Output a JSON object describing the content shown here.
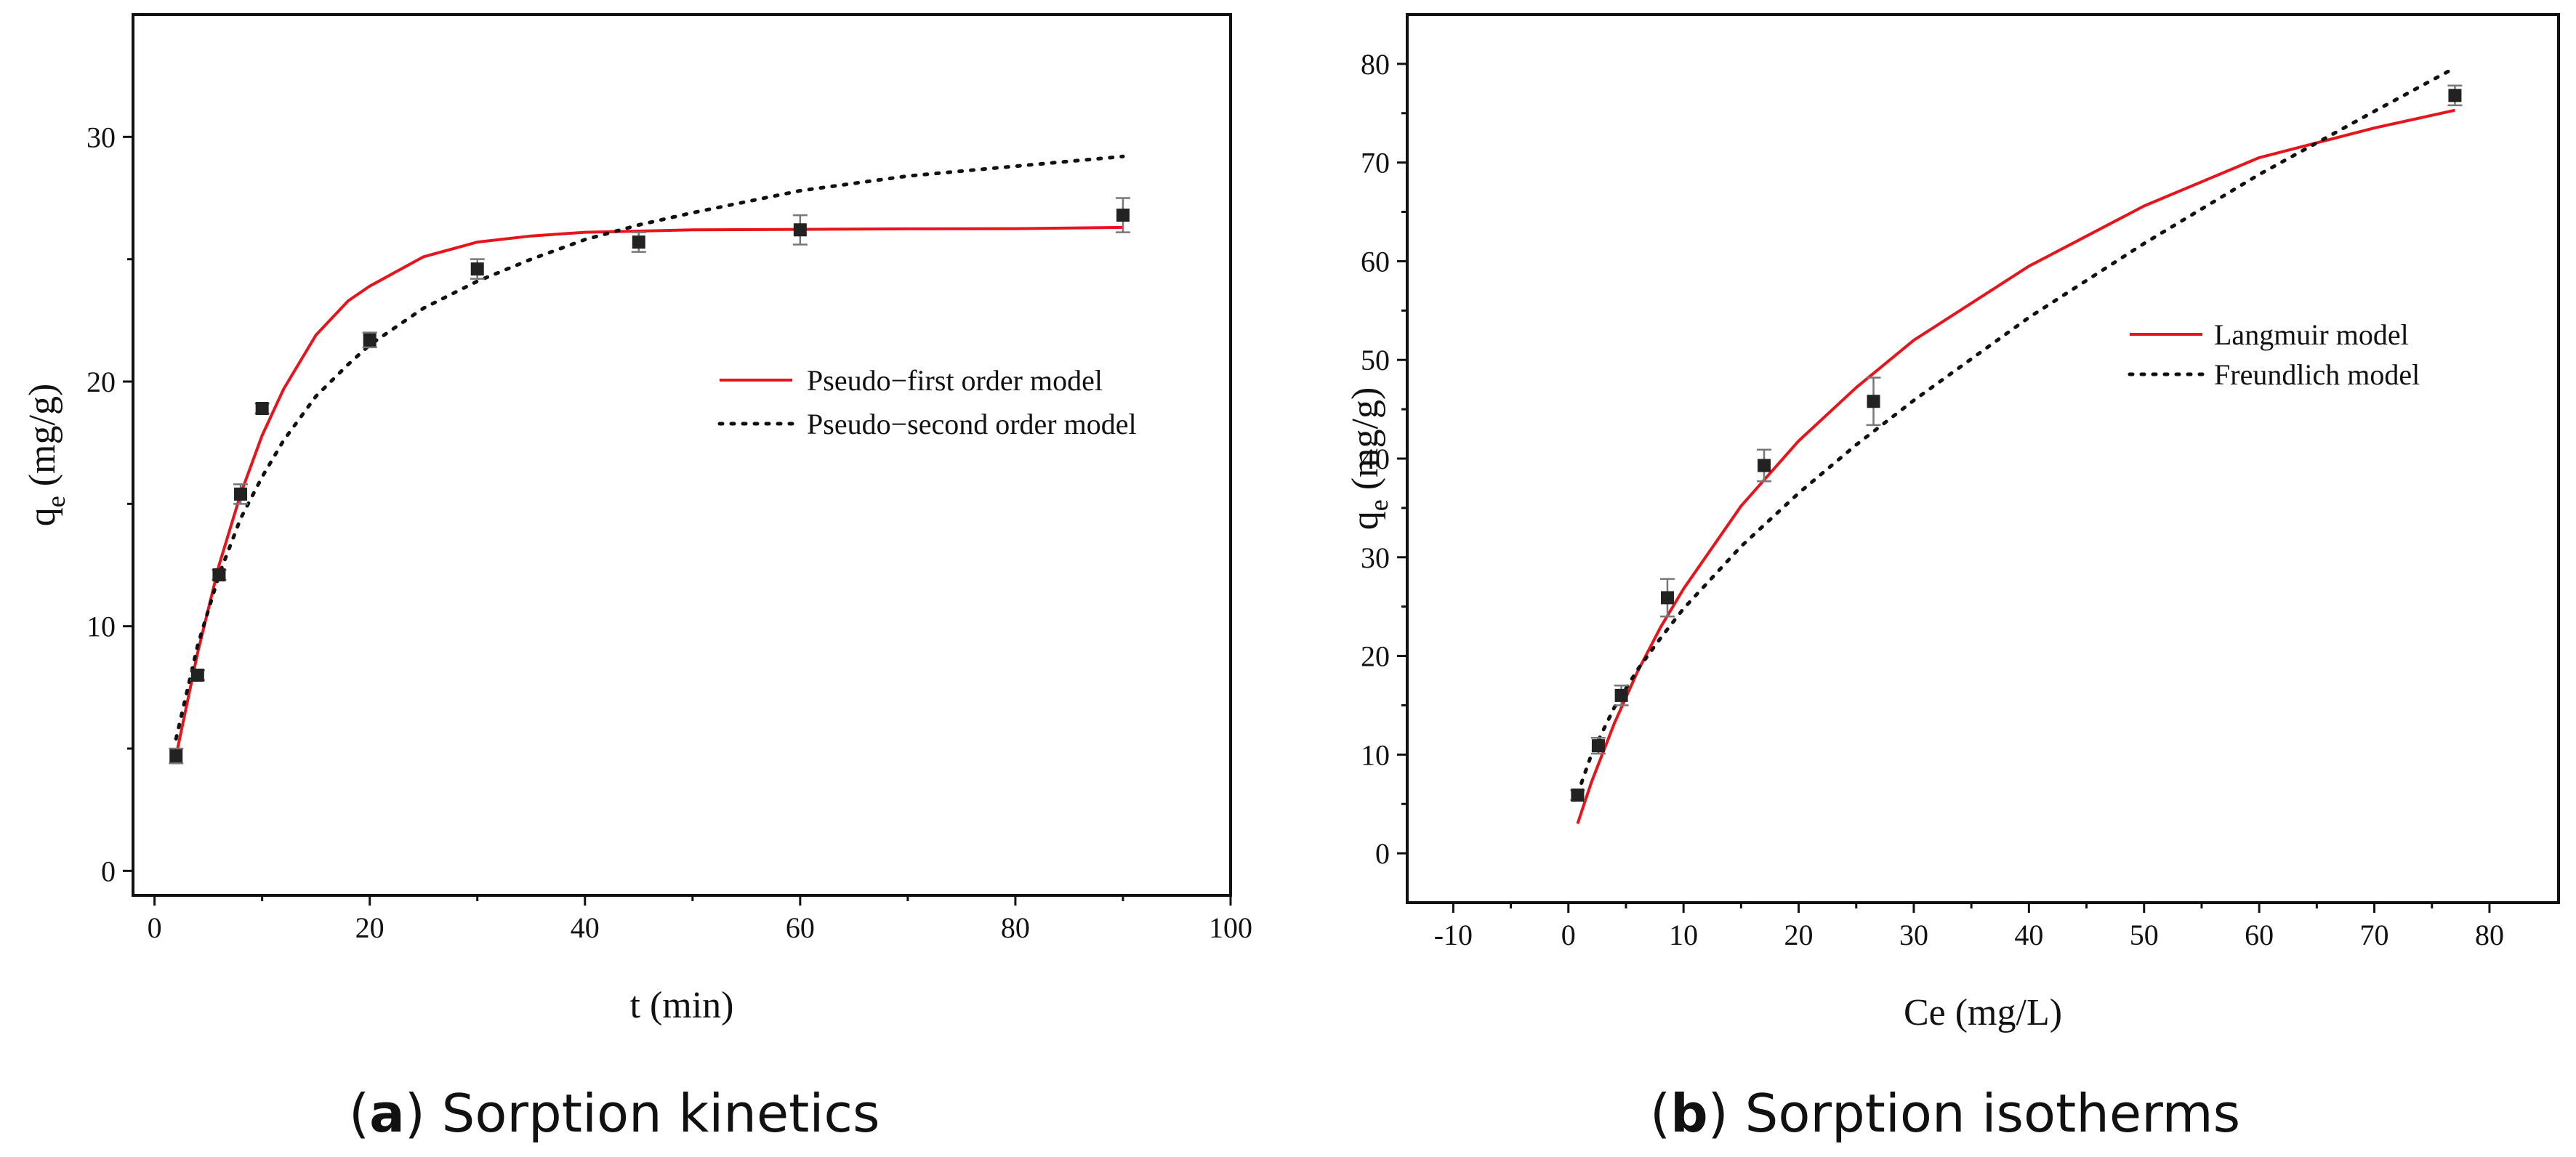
{
  "chart_data": [
    {
      "type": "scatter",
      "title": "",
      "xlabel": "t (min)",
      "ylabel_main": "q",
      "ylabel_sub": "e",
      "ylabel_unit": " (mg/g)",
      "xlim": [
        -2,
        100
      ],
      "ylim": [
        -1,
        35
      ],
      "xticks": [
        0,
        20,
        40,
        60,
        80,
        100
      ],
      "yticks": [
        0,
        10,
        20,
        30
      ],
      "xtick_labels": [
        "0",
        "20",
        "40",
        "60",
        "80",
        "100"
      ],
      "ytick_labels": [
        "0",
        "10",
        "20",
        "30"
      ],
      "grid": false,
      "legend_position": "middle-right",
      "points": [
        {
          "x": 2,
          "y": 4.7,
          "err": 0.3
        },
        {
          "x": 4,
          "y": 8.0,
          "err": 0.2
        },
        {
          "x": 6,
          "y": 12.1,
          "err": 0.2
        },
        {
          "x": 8,
          "y": 15.4,
          "err": 0.4
        },
        {
          "x": 10,
          "y": 18.9,
          "err": 0.2
        },
        {
          "x": 20,
          "y": 21.7,
          "err": 0.3
        },
        {
          "x": 30,
          "y": 24.6,
          "err": 0.4
        },
        {
          "x": 45,
          "y": 25.7,
          "err": 0.4
        },
        {
          "x": 60,
          "y": 26.2,
          "err": 0.6
        },
        {
          "x": 90,
          "y": 26.8,
          "err": 0.7
        }
      ],
      "series": [
        {
          "name": "Pseudo−first order model",
          "style": "solid",
          "color": "#e8141c",
          "x": [
            2,
            4,
            6,
            8,
            10,
            12,
            15,
            18,
            20,
            25,
            30,
            35,
            40,
            45,
            50,
            60,
            70,
            80,
            90
          ],
          "values": [
            4.7,
            8.9,
            12.5,
            15.4,
            17.8,
            19.7,
            21.9,
            23.3,
            23.9,
            25.1,
            25.7,
            25.95,
            26.1,
            26.15,
            26.2,
            26.22,
            26.24,
            26.25,
            26.3
          ]
        },
        {
          "name": "Pseudo−second order model",
          "style": "dotted",
          "color": "#111111",
          "x": [
            2,
            4,
            6,
            8,
            10,
            12,
            15,
            18,
            20,
            25,
            30,
            35,
            40,
            45,
            50,
            60,
            70,
            80,
            90
          ],
          "values": [
            5.4,
            9.2,
            12.1,
            14.4,
            16.1,
            17.6,
            19.4,
            20.7,
            21.5,
            23.0,
            24.1,
            25.0,
            25.8,
            26.4,
            26.9,
            27.8,
            28.4,
            28.8,
            29.2
          ]
        }
      ]
    },
    {
      "type": "scatter",
      "title": "",
      "xlabel": "Ce (mg/L)",
      "ylabel_main": "q",
      "ylabel_sub": "e",
      "ylabel_unit": " (mg/g)",
      "xlim": [
        -14,
        86
      ],
      "ylim": [
        -5,
        85
      ],
      "xticks": [
        -10,
        0,
        10,
        20,
        30,
        40,
        50,
        60,
        70,
        80
      ],
      "yticks": [
        0,
        10,
        20,
        30,
        40,
        50,
        60,
        70,
        80
      ],
      "xtick_labels": [
        "-10",
        "0",
        "10",
        "20",
        "30",
        "40",
        "50",
        "60",
        "70",
        "80"
      ],
      "ytick_labels": [
        "0",
        "10",
        "20",
        "30",
        "40",
        "50",
        "60",
        "70",
        "80"
      ],
      "grid": false,
      "legend_position": "top-right",
      "points": [
        {
          "x": 0.8,
          "y": 5.9,
          "err": 0.5
        },
        {
          "x": 2.6,
          "y": 10.9,
          "err": 0.8
        },
        {
          "x": 4.6,
          "y": 16.0,
          "err": 1.0
        },
        {
          "x": 8.6,
          "y": 25.9,
          "err": 1.9
        },
        {
          "x": 17.0,
          "y": 39.3,
          "err": 1.6
        },
        {
          "x": 26.5,
          "y": 45.8,
          "err": 2.4
        },
        {
          "x": 77.0,
          "y": 76.8,
          "err": 1.0
        }
      ],
      "series": [
        {
          "name": "Langmuir model",
          "style": "solid",
          "color": "#e8141c",
          "x": [
            0.8,
            2,
            4,
            6,
            8,
            10,
            15,
            20,
            25,
            30,
            40,
            50,
            60,
            70,
            77
          ],
          "values": [
            3.0,
            7.2,
            13.2,
            18.4,
            22.9,
            26.8,
            35.2,
            41.8,
            47.2,
            52.0,
            59.5,
            65.6,
            70.5,
            73.5,
            75.3
          ]
        },
        {
          "name": "Freundlich model",
          "style": "dotted",
          "color": "#111111",
          "x": [
            0.8,
            2,
            4,
            6,
            8,
            10,
            15,
            20,
            25,
            30,
            40,
            50,
            60,
            70,
            77
          ],
          "values": [
            6.0,
            10.0,
            14.8,
            18.6,
            21.8,
            24.8,
            31.1,
            36.5,
            41.4,
            45.9,
            54.3,
            61.8,
            68.8,
            75.2,
            79.6
          ]
        }
      ]
    }
  ],
  "captions": {
    "a_letter": "a",
    "a_text": " Sorption kinetics",
    "b_letter": "b",
    "b_text": " Sorption isotherms"
  }
}
